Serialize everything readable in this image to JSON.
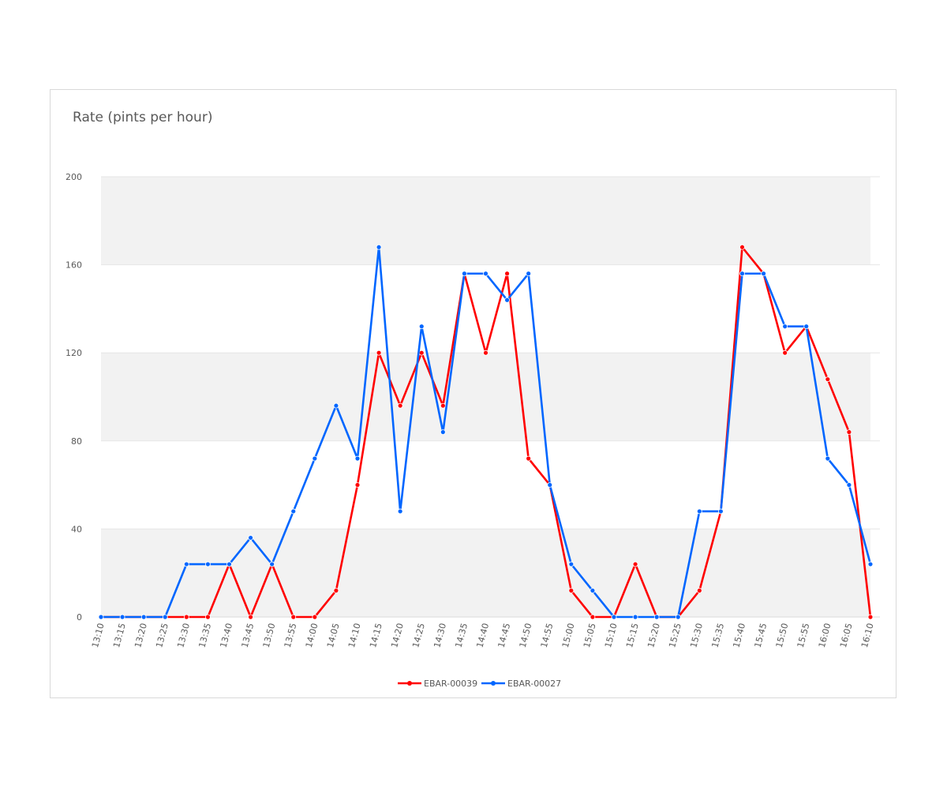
{
  "chart_data": {
    "type": "line",
    "title": "Rate (pints per hour)",
    "xlabel": "",
    "ylabel": "",
    "ylim": [
      0,
      200
    ],
    "yticks": [
      0,
      40,
      80,
      120,
      160,
      200
    ],
    "grid": "alternating bands",
    "legend_position": "bottom",
    "categories": [
      "13:10",
      "13:15",
      "13:20",
      "13:25",
      "13:30",
      "13:35",
      "13:40",
      "13:45",
      "13:50",
      "13:55",
      "14:00",
      "14:05",
      "14:10",
      "14:15",
      "14:20",
      "14:25",
      "14:30",
      "14:35",
      "14:40",
      "14:45",
      "14:50",
      "14:55",
      "15:00",
      "15:05",
      "15:10",
      "15:15",
      "15:20",
      "15:25",
      "15:30",
      "15:35",
      "15:40",
      "15:45",
      "15:50",
      "15:55",
      "16:00",
      "16:05",
      "16:10"
    ],
    "series": [
      {
        "name": "EBAR-00039",
        "color": "#ff0000",
        "values": [
          0,
          0,
          0,
          0,
          0,
          0,
          24,
          0,
          24,
          0,
          0,
          12,
          60,
          120,
          96,
          120,
          96,
          156,
          120,
          156,
          72,
          60,
          12,
          0,
          0,
          24,
          0,
          0,
          12,
          48,
          168,
          156,
          120,
          132,
          108,
          84,
          0
        ]
      },
      {
        "name": "EBAR-00027",
        "color": "#0066ff",
        "values": [
          0,
          0,
          0,
          0,
          24,
          24,
          24,
          36,
          24,
          48,
          72,
          96,
          72,
          168,
          48,
          132,
          84,
          156,
          156,
          144,
          156,
          60,
          24,
          12,
          0,
          0,
          0,
          0,
          48,
          48,
          156,
          156,
          132,
          132,
          72,
          60,
          24
        ]
      }
    ]
  }
}
